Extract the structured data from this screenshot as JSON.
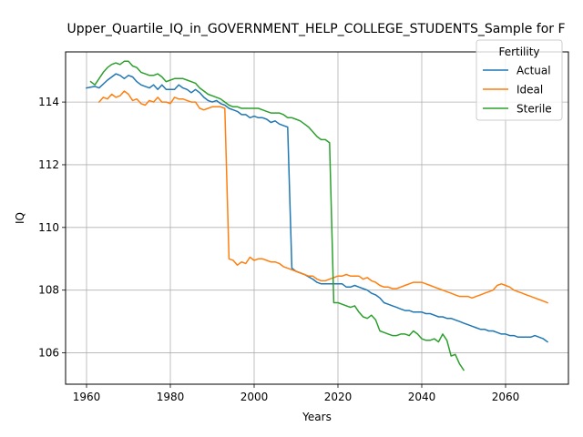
{
  "chart_data": {
    "type": "line",
    "title": "Upper_Quartile_IQ_in_GOVERNMENT_HELP_COLLEGE_STUDENTS_Sample for F",
    "xlabel": "Years",
    "ylabel": "IQ",
    "xlim": [
      1955,
      2075
    ],
    "ylim": [
      105,
      115.6
    ],
    "xticks": [
      1960,
      1980,
      2000,
      2020,
      2040,
      2060
    ],
    "yticks": [
      106,
      108,
      110,
      112,
      114
    ],
    "grid": true,
    "legend": {
      "title": "Fertility",
      "position": "top-right"
    },
    "series": [
      {
        "name": "Actual",
        "color": "#1f77b4",
        "x": [
          1960,
          1962,
          1963,
          1965,
          1967,
          1968,
          1969,
          1970,
          1971,
          1972,
          1973,
          1974,
          1975,
          1976,
          1977,
          1978,
          1979,
          1980,
          1981,
          1982,
          1983,
          1984,
          1985,
          1986,
          1987,
          1988,
          1989,
          1990,
          1991,
          1992,
          1993,
          1994,
          1995,
          1996,
          1997,
          1998,
          1999,
          2000,
          2001,
          2002,
          2003,
          2004,
          2005,
          2006,
          2007,
          2008,
          2009,
          2010,
          2012,
          2014,
          2015,
          2016,
          2017,
          2018,
          2019,
          2020,
          2021,
          2022,
          2023,
          2024,
          2025,
          2026,
          2027,
          2028,
          2029,
          2030,
          2031,
          2032,
          2033,
          2034,
          2035,
          2036,
          2037,
          2038,
          2039,
          2040,
          2041,
          2042,
          2043,
          2044,
          2045,
          2046,
          2047,
          2048,
          2049,
          2050,
          2051,
          2052,
          2053,
          2054,
          2055,
          2056,
          2057,
          2058,
          2059,
          2060,
          2061,
          2062,
          2063,
          2064,
          2065,
          2066,
          2067,
          2068,
          2069,
          2070
        ],
        "values": [
          114.45,
          114.5,
          114.45,
          114.7,
          114.9,
          114.85,
          114.75,
          114.85,
          114.8,
          114.65,
          114.55,
          114.5,
          114.45,
          114.55,
          114.4,
          114.55,
          114.4,
          114.4,
          114.4,
          114.55,
          114.45,
          114.4,
          114.3,
          114.4,
          114.3,
          114.15,
          114.05,
          114.0,
          114.05,
          113.95,
          113.9,
          113.8,
          113.75,
          113.7,
          113.6,
          113.6,
          113.5,
          113.55,
          113.5,
          113.5,
          113.45,
          113.35,
          113.4,
          113.3,
          113.25,
          113.2,
          108.7,
          108.6,
          108.5,
          108.35,
          108.25,
          108.2,
          108.2,
          108.2,
          108.2,
          108.2,
          108.2,
          108.1,
          108.1,
          108.15,
          108.1,
          108.05,
          108.0,
          107.9,
          107.85,
          107.75,
          107.6,
          107.55,
          107.5,
          107.45,
          107.4,
          107.35,
          107.35,
          107.3,
          107.3,
          107.3,
          107.25,
          107.25,
          107.2,
          107.15,
          107.15,
          107.1,
          107.1,
          107.05,
          107.0,
          106.95,
          106.9,
          106.85,
          106.8,
          106.75,
          106.75,
          106.7,
          106.7,
          106.65,
          106.6,
          106.6,
          106.55,
          106.55,
          106.5,
          106.5,
          106.5,
          106.5,
          106.55,
          106.5,
          106.45,
          106.35
        ]
      },
      {
        "name": "Ideal",
        "color": "#ff7f0e",
        "x": [
          1963,
          1964,
          1965,
          1966,
          1967,
          1968,
          1969,
          1970,
          1971,
          1972,
          1973,
          1974,
          1975,
          1976,
          1977,
          1978,
          1979,
          1980,
          1981,
          1982,
          1983,
          1984,
          1985,
          1986,
          1987,
          1988,
          1989,
          1990,
          1991,
          1992,
          1993,
          1994,
          1995,
          1996,
          1997,
          1998,
          1999,
          2000,
          2001,
          2002,
          2003,
          2004,
          2005,
          2006,
          2007,
          2008,
          2009,
          2010,
          2011,
          2012,
          2013,
          2014,
          2015,
          2016,
          2017,
          2018,
          2019,
          2020,
          2021,
          2022,
          2023,
          2024,
          2025,
          2026,
          2027,
          2028,
          2029,
          2030,
          2031,
          2032,
          2033,
          2034,
          2035,
          2036,
          2037,
          2038,
          2039,
          2040,
          2041,
          2042,
          2043,
          2044,
          2045,
          2046,
          2047,
          2048,
          2049,
          2050,
          2051,
          2052,
          2053,
          2054,
          2055,
          2056,
          2057,
          2058,
          2059,
          2060,
          2061,
          2062,
          2063,
          2064,
          2065,
          2066,
          2067,
          2068,
          2069,
          2070
        ],
        "values": [
          114.0,
          114.15,
          114.1,
          114.25,
          114.15,
          114.2,
          114.35,
          114.25,
          114.05,
          114.1,
          113.95,
          113.9,
          114.05,
          114.0,
          114.15,
          114.0,
          114.0,
          113.95,
          114.15,
          114.1,
          114.1,
          114.05,
          114.0,
          114.0,
          113.8,
          113.75,
          113.8,
          113.85,
          113.85,
          113.85,
          113.8,
          109.0,
          108.95,
          108.8,
          108.9,
          108.85,
          109.05,
          108.95,
          109.0,
          109.0,
          108.95,
          108.9,
          108.9,
          108.85,
          108.75,
          108.7,
          108.65,
          108.6,
          108.55,
          108.5,
          108.45,
          108.45,
          108.35,
          108.3,
          108.3,
          108.35,
          108.4,
          108.45,
          108.45,
          108.5,
          108.45,
          108.45,
          108.45,
          108.35,
          108.4,
          108.3,
          108.25,
          108.15,
          108.1,
          108.1,
          108.05,
          108.05,
          108.1,
          108.15,
          108.2,
          108.25,
          108.25,
          108.25,
          108.2,
          108.15,
          108.1,
          108.05,
          108.0,
          107.95,
          107.9,
          107.85,
          107.8,
          107.8,
          107.8,
          107.75,
          107.8,
          107.85,
          107.9,
          107.95,
          108.0,
          108.15,
          108.2,
          108.15,
          108.1,
          108.0,
          107.95,
          107.9,
          107.85,
          107.8,
          107.75,
          107.7,
          107.65,
          107.6
        ]
      },
      {
        "name": "Sterile",
        "color": "#2ca02c",
        "x": [
          1961,
          1962,
          1963,
          1964,
          1965,
          1966,
          1967,
          1968,
          1969,
          1970,
          1971,
          1972,
          1973,
          1974,
          1975,
          1976,
          1977,
          1978,
          1979,
          1980,
          1981,
          1982,
          1983,
          1984,
          1985,
          1986,
          1987,
          1988,
          1989,
          1990,
          1991,
          1992,
          1993,
          1994,
          1995,
          1996,
          1997,
          1998,
          1999,
          2000,
          2001,
          2002,
          2003,
          2004,
          2005,
          2006,
          2007,
          2008,
          2009,
          2010,
          2011,
          2012,
          2013,
          2014,
          2015,
          2016,
          2017,
          2018,
          2019,
          2020,
          2021,
          2022,
          2023,
          2024,
          2025,
          2026,
          2027,
          2028,
          2029,
          2030,
          2031,
          2032,
          2033,
          2034,
          2035,
          2036,
          2037,
          2038,
          2039,
          2040,
          2041,
          2042,
          2043,
          2044,
          2045,
          2046,
          2047,
          2048,
          2049,
          2050
        ],
        "values": [
          114.65,
          114.55,
          114.75,
          114.95,
          115.1,
          115.2,
          115.25,
          115.2,
          115.3,
          115.3,
          115.15,
          115.1,
          114.95,
          114.9,
          114.85,
          114.85,
          114.9,
          114.8,
          114.65,
          114.7,
          114.75,
          114.75,
          114.75,
          114.7,
          114.65,
          114.6,
          114.45,
          114.35,
          114.25,
          114.2,
          114.15,
          114.1,
          114.0,
          113.9,
          113.85,
          113.85,
          113.8,
          113.8,
          113.8,
          113.8,
          113.8,
          113.75,
          113.7,
          113.65,
          113.65,
          113.65,
          113.6,
          113.5,
          113.5,
          113.45,
          113.4,
          113.3,
          113.2,
          113.05,
          112.9,
          112.8,
          112.8,
          112.7,
          107.6,
          107.6,
          107.55,
          107.5,
          107.45,
          107.5,
          107.3,
          107.15,
          107.1,
          107.2,
          107.05,
          106.7,
          106.65,
          106.6,
          106.55,
          106.55,
          106.6,
          106.6,
          106.55,
          106.7,
          106.6,
          106.45,
          106.4,
          106.4,
          106.45,
          106.35,
          106.6,
          106.4,
          105.9,
          105.95,
          105.65,
          105.45
        ]
      }
    ]
  }
}
